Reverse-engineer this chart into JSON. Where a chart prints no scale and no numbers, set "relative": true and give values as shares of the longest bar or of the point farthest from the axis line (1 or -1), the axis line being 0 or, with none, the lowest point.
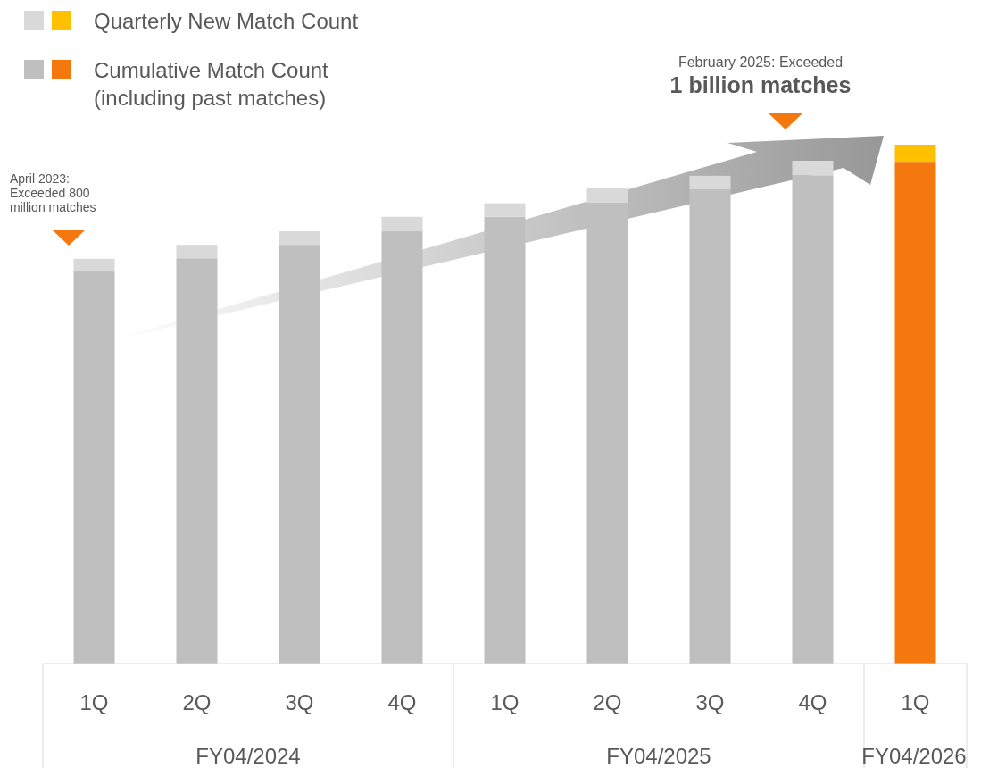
{
  "chart_data": {
    "type": "bar",
    "stacked": true,
    "relative": true,
    "legend": "top left",
    "categories": [
      "1Q",
      "2Q",
      "3Q",
      "4Q",
      "1Q",
      "2Q",
      "3Q",
      "4Q",
      "1Q"
    ],
    "series": [
      {
        "name": "Cumulative Match Count\n(including past matches)",
        "colors": [
          "#bfbfbf",
          "#bfbfbf",
          "#bfbfbf",
          "#bfbfbf",
          "#bfbfbf",
          "#bfbfbf",
          "#bfbfbf",
          "#bfbfbf",
          "#f5780f"
        ],
        "values": [
          0.756,
          0.781,
          0.807,
          0.833,
          0.861,
          0.888,
          0.914,
          0.941,
          0.967
        ]
      },
      {
        "name": "Quarterly New Match Count",
        "colors": [
          "#d9d9d9",
          "#d9d9d9",
          "#d9d9d9",
          "#d9d9d9",
          "#d9d9d9",
          "#d9d9d9",
          "#d9d9d9",
          "#d9d9d9",
          "#ffc000"
        ],
        "values": [
          0.024,
          0.026,
          0.026,
          0.028,
          0.026,
          0.028,
          0.026,
          0.028,
          0.033
        ]
      }
    ],
    "annotations": [
      "April 2023:\nExceeded 800\nmillion matches",
      "February 2025: Exceeded",
      "1 billion matches",
      "FY04/2024",
      "FY04/2025",
      "FY04/2026"
    ]
  }
}
